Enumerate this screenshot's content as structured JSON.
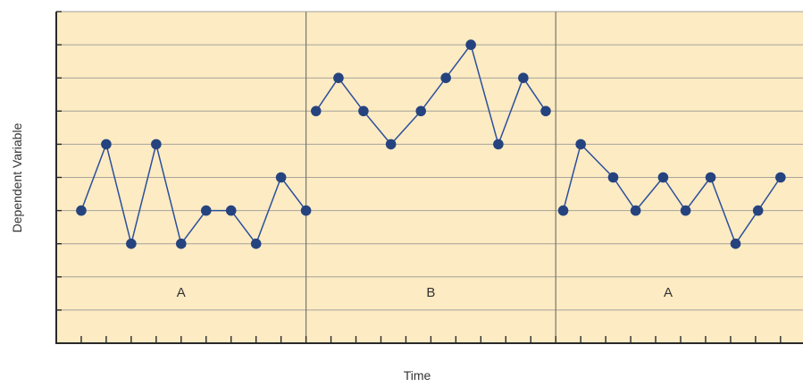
{
  "chart_data": {
    "type": "line",
    "title": "",
    "xlabel": "Time",
    "ylabel": "Dependent Variable",
    "ylim": [
      0,
      10
    ],
    "grid": true,
    "y_gridlines": [
      1,
      2,
      3,
      4,
      5,
      6,
      7,
      8,
      9,
      10
    ],
    "phases": [
      {
        "label": "A",
        "x_start": 0,
        "x_end": 10,
        "ticks": [
          1,
          2,
          3,
          4,
          5,
          6,
          7,
          8,
          9,
          10
        ],
        "points": [
          {
            "x": 1.0,
            "y": 4.0
          },
          {
            "x": 2.0,
            "y": 6.0
          },
          {
            "x": 3.0,
            "y": 3.0
          },
          {
            "x": 4.0,
            "y": 6.0
          },
          {
            "x": 5.0,
            "y": 3.0
          },
          {
            "x": 6.0,
            "y": 4.0
          },
          {
            "x": 7.0,
            "y": 4.0
          },
          {
            "x": 8.0,
            "y": 3.0
          },
          {
            "x": 9.0,
            "y": 5.0
          },
          {
            "x": 10.0,
            "y": 4.0
          }
        ]
      },
      {
        "label": "B",
        "x_start": 10,
        "x_end": 20,
        "ticks": [
          11,
          12,
          13,
          14,
          15,
          16,
          17,
          18,
          19,
          20
        ],
        "points": [
          {
            "x": 10.4,
            "y": 7.0
          },
          {
            "x": 11.3,
            "y": 8.0
          },
          {
            "x": 12.3,
            "y": 7.0
          },
          {
            "x": 13.4,
            "y": 6.0
          },
          {
            "x": 14.6,
            "y": 7.0
          },
          {
            "x": 15.6,
            "y": 8.0
          },
          {
            "x": 16.6,
            "y": 9.0
          },
          {
            "x": 17.7,
            "y": 6.0
          },
          {
            "x": 18.7,
            "y": 8.0
          },
          {
            "x": 19.6,
            "y": 7.0
          }
        ]
      },
      {
        "label": "A",
        "x_start": 20,
        "x_end": 29,
        "ticks": [
          21,
          22,
          23,
          24,
          25,
          26,
          27,
          28,
          29
        ],
        "points": [
          {
            "x": 20.3,
            "y": 4.0
          },
          {
            "x": 21.0,
            "y": 6.0
          },
          {
            "x": 22.3,
            "y": 5.0
          },
          {
            "x": 23.2,
            "y": 4.0
          },
          {
            "x": 24.3,
            "y": 5.0
          },
          {
            "x": 25.2,
            "y": 4.0
          },
          {
            "x": 26.2,
            "y": 5.0
          },
          {
            "x": 27.2,
            "y": 3.0
          },
          {
            "x": 28.1,
            "y": 4.0
          },
          {
            "x": 29.0,
            "y": 5.0
          }
        ]
      }
    ],
    "colors": {
      "background": "#fcebc3",
      "gridline": "#a7a39a",
      "axis": "#2a2a2a",
      "phase_divider": "#7a7670",
      "line": "#2c4f9b",
      "marker": "#25437f"
    }
  }
}
